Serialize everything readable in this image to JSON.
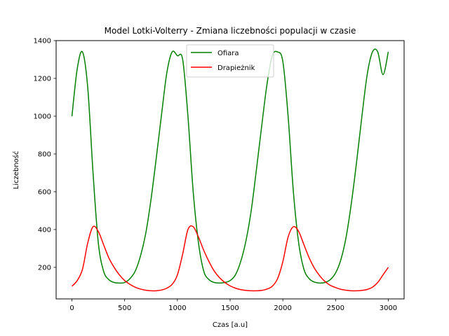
{
  "chart_data": {
    "type": "line",
    "title": "Model Lotki-Volterry - Zmiana liczebności populacji w czasie",
    "xlabel": "Czas [a.u]",
    "ylabel": "Liczebność",
    "xlim": [
      -150,
      3150
    ],
    "ylim": [
      33,
      1400
    ],
    "xticks": [
      0,
      500,
      1000,
      1500,
      2000,
      2500,
      3000
    ],
    "yticks": [
      200,
      400,
      600,
      800,
      1000,
      1200,
      1400
    ],
    "grid": false,
    "legend_position": "top-center",
    "x": [
      0,
      50,
      100,
      150,
      200,
      250,
      300,
      350,
      400,
      450,
      500,
      550,
      600,
      650,
      700,
      750,
      800,
      850,
      900,
      950,
      1000,
      1050,
      1100,
      1150,
      1200,
      1250,
      1300,
      1350,
      1400,
      1450,
      1500,
      1550,
      1600,
      1650,
      1700,
      1750,
      1800,
      1850,
      1900,
      1950,
      2000,
      2050,
      2100,
      2150,
      2200,
      2250,
      2300,
      2350,
      2400,
      2450,
      2500,
      2550,
      2600,
      2650,
      2700,
      2750,
      2800,
      2850,
      2900,
      2950,
      3000
    ],
    "series": [
      {
        "name": "Ofiara",
        "color": "#008000",
        "values": [
          1000,
          1250,
          1340,
          1150,
          700,
          330,
          180,
          135,
          120,
          117,
          120,
          140,
          180,
          260,
          380,
          560,
          780,
          1010,
          1230,
          1340,
          1320,
          1300,
          1000,
          600,
          330,
          180,
          135,
          120,
          117,
          120,
          130,
          160,
          230,
          340,
          500,
          720,
          950,
          1170,
          1320,
          1340,
          1290,
          1000,
          600,
          330,
          190,
          140,
          122,
          117,
          120,
          135,
          170,
          240,
          360,
          540,
          760,
          1000,
          1220,
          1340,
          1340,
          1220,
          1340
        ]
      },
      {
        "name": "Drapieżnik",
        "color": "#ff0000",
        "values": [
          100,
          130,
          190,
          330,
          415,
          390,
          320,
          250,
          200,
          160,
          130,
          110,
          95,
          85,
          79,
          76,
          76,
          80,
          90,
          110,
          160,
          270,
          400,
          415,
          360,
          290,
          230,
          180,
          145,
          120,
          102,
          90,
          82,
          78,
          76,
          76,
          78,
          85,
          100,
          140,
          230,
          360,
          415,
          390,
          320,
          250,
          195,
          155,
          125,
          105,
          93,
          84,
          79,
          76,
          76,
          78,
          83,
          95,
          120,
          160,
          200
        ]
      }
    ]
  }
}
